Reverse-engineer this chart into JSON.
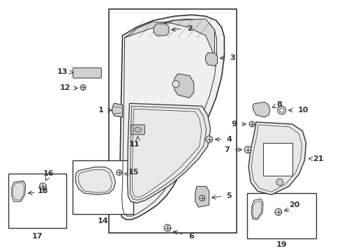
{
  "bg_color": "#ffffff",
  "line_color": "#333333",
  "font_size": 8,
  "figsize": [
    4.9,
    3.6
  ],
  "dpi": 100
}
